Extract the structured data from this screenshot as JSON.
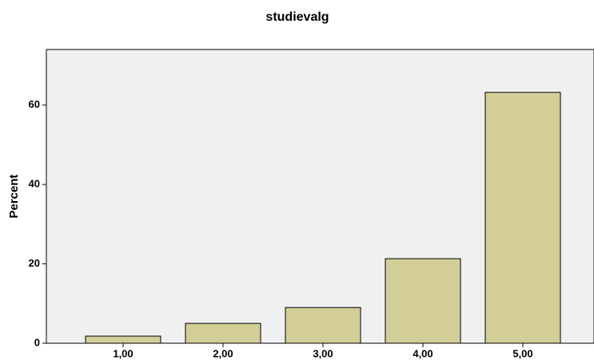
{
  "chart_data": {
    "type": "bar",
    "title": "studievalg",
    "y_label": "Percent",
    "categories": [
      "1,00",
      "2,00",
      "3,00",
      "4,00",
      "5,00"
    ],
    "values": [
      1.8,
      5.0,
      9.0,
      21.3,
      63.2
    ],
    "color": "#d3ce98",
    "ylim": [
      0,
      74
    ],
    "yticks": [
      0,
      20,
      40,
      60
    ]
  }
}
